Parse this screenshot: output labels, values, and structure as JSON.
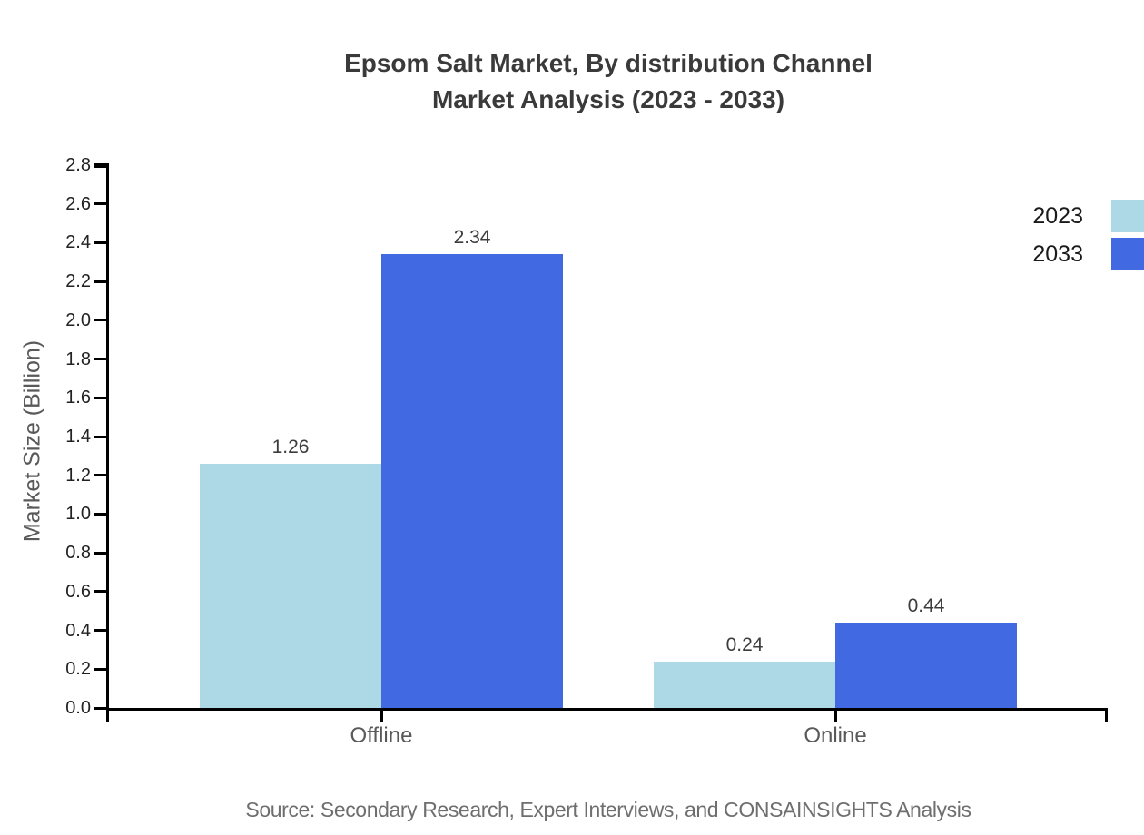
{
  "title": {
    "line1": "Epsom Salt Market, By distribution Channel",
    "line2": "Market Analysis (2023 - 2033)"
  },
  "source": "Source: Secondary Research, Expert Interviews, and CONSAINSIGHTS Analysis",
  "legend": {
    "position": "top-right",
    "items": [
      {
        "label": "2023",
        "color": "#ADD8E6"
      },
      {
        "label": "2033",
        "color": "#4169E1"
      }
    ]
  },
  "chart_data": {
    "type": "bar",
    "title": "Epsom Salt Market, By distribution Channel Market Analysis (2023 - 2033)",
    "categories": [
      "Offline",
      "Online"
    ],
    "series": [
      {
        "name": "2023",
        "color": "#ADD8E6",
        "values": [
          1.26,
          0.24
        ]
      },
      {
        "name": "2033",
        "color": "#4169E1",
        "values": [
          2.34,
          0.44
        ]
      }
    ],
    "xlabel": "",
    "ylabel": "Market Size (Billion)",
    "ylim": [
      0,
      2.8
    ],
    "ytick_step": 0.2,
    "ytick_labels": [
      "0.0",
      "0.2",
      "0.4",
      "0.6",
      "0.8",
      "1.0",
      "1.2",
      "1.4",
      "1.6",
      "1.8",
      "2.0",
      "2.2",
      "2.4",
      "2.6",
      "2.8"
    ],
    "value_labels": [
      "1.26",
      "2.34",
      "0.24",
      "0.44"
    ],
    "grid": false,
    "legend_position": "top-right",
    "axis_color": "#000000",
    "text_colors": {
      "title": "#3a3a3a",
      "tick_labels": "#222222",
      "category_labels": "#595959",
      "value_labels": "#3c3c3c",
      "source": "#6e6e6e"
    }
  }
}
